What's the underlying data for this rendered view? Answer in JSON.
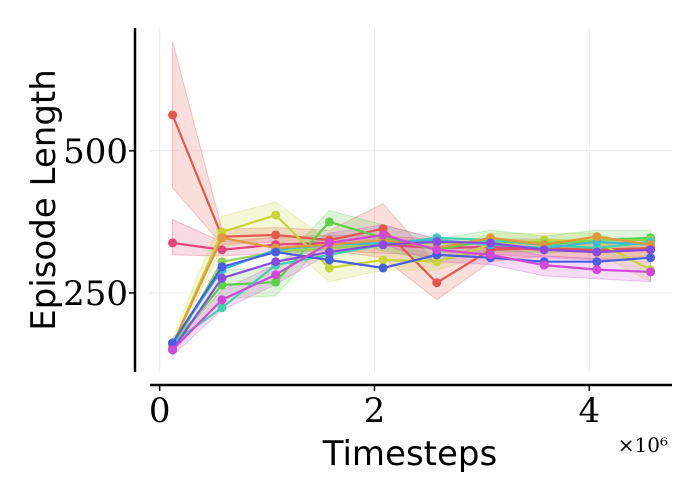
{
  "chart_data": {
    "type": "line",
    "xlabel": "Timesteps",
    "ylabel": "Episode Length",
    "x_offset_label": "×10⁶",
    "x": [
      0.12,
      0.58,
      1.08,
      1.58,
      2.08,
      2.58,
      3.08,
      3.58,
      4.07,
      4.57
    ],
    "xlim": [
      -0.09,
      4.77
    ],
    "xticks": [
      0,
      2,
      4
    ],
    "ylim": [
      111,
      716
    ],
    "yticks": [
      250,
      500
    ],
    "grid": true,
    "series": [
      {
        "color": "#e05a4f",
        "values": [
          563,
          349,
          352,
          343,
          363,
          268,
          326,
          329,
          326,
          329
        ],
        "lower": [
          435,
          335,
          340,
          325,
          312,
          238,
          305,
          315,
          310,
          315
        ],
        "upper": [
          692,
          362,
          365,
          360,
          407,
          299,
          345,
          345,
          342,
          342
        ]
      },
      {
        "color": "#e0457b",
        "values": [
          338,
          326,
          335,
          338,
          335,
          329,
          331,
          326,
          322,
          326
        ],
        "lower": [
          317,
          315,
          320,
          325,
          320,
          315,
          318,
          312,
          308,
          312
        ],
        "upper": [
          379,
          340,
          348,
          352,
          350,
          345,
          345,
          340,
          336,
          340
        ]
      },
      {
        "color": "#c8d43a",
        "values": [
          159,
          357,
          387,
          294,
          308,
          305,
          335,
          343,
          340,
          291
        ],
        "lower": [
          150,
          330,
          350,
          270,
          290,
          290,
          320,
          325,
          320,
          270
        ],
        "upper": [
          170,
          385,
          410,
          340,
          330,
          320,
          355,
          355,
          355,
          325
        ]
      },
      {
        "color": "#5ecf4a",
        "values": [
          159,
          264,
          269,
          375,
          347,
          326,
          343,
          335,
          343,
          347
        ],
        "lower": [
          150,
          240,
          245,
          350,
          325,
          305,
          325,
          320,
          325,
          330
        ],
        "upper": [
          168,
          290,
          295,
          395,
          370,
          345,
          360,
          350,
          360,
          360
        ]
      },
      {
        "color": "#8fd64e",
        "values": [
          153,
          305,
          322,
          329,
          335,
          338,
          340,
          338,
          343,
          343
        ]
      },
      {
        "color": "#3fd1b0",
        "values": [
          162,
          224,
          299,
          317,
          335,
          347,
          343,
          335,
          329,
          340
        ]
      },
      {
        "color": "#3cbad8",
        "values": [
          162,
          291,
          326,
          335,
          338,
          343,
          335,
          329,
          340,
          335
        ]
      },
      {
        "color": "#e09a3a",
        "values": [
          159,
          347,
          329,
          335,
          343,
          329,
          347,
          335,
          349,
          335
        ]
      },
      {
        "color": "#4a5ee0",
        "values": [
          162,
          296,
          322,
          308,
          294,
          317,
          312,
          305,
          305,
          312
        ]
      },
      {
        "color": "#8a4ae0",
        "values": [
          150,
          276,
          305,
          322,
          335,
          340,
          338,
          326,
          322,
          326
        ]
      },
      {
        "color": "#d04ad8",
        "values": [
          150,
          238,
          282,
          338,
          352,
          326,
          317,
          299,
          291,
          287
        ],
        "lower": [
          140,
          220,
          265,
          320,
          335,
          305,
          300,
          280,
          275,
          270
        ],
        "upper": [
          160,
          255,
          300,
          355,
          370,
          345,
          335,
          315,
          310,
          305
        ]
      }
    ]
  }
}
